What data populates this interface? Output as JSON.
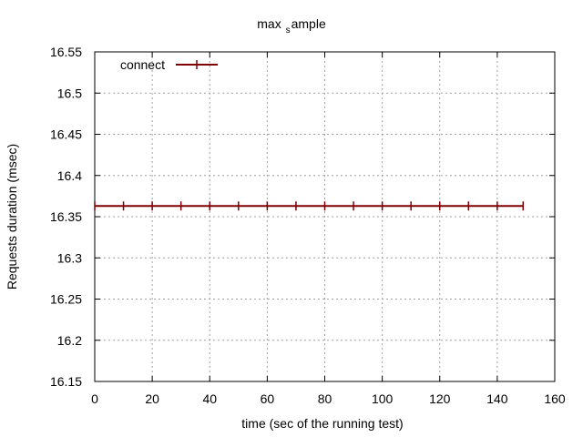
{
  "chart_data": {
    "type": "line",
    "title_main": "max",
    "title_sub": "s",
    "title_rest": "ample",
    "xlabel": "time (sec of the running test)",
    "ylabel": "Requests duration (msec)",
    "xlim": [
      0,
      160
    ],
    "ylim": [
      16.15,
      16.55
    ],
    "xticks": [
      "0",
      "20",
      "40",
      "60",
      "80",
      "100",
      "120",
      "140",
      "160"
    ],
    "yticks": [
      "16.15",
      "16.2",
      "16.25",
      "16.3",
      "16.35",
      "16.4",
      "16.45",
      "16.5",
      "16.55"
    ],
    "grid": true,
    "legend_position": "top-left",
    "series": [
      {
        "name": "connect",
        "color": "#7f0000",
        "x": [
          0,
          10,
          20,
          30,
          40,
          50,
          60,
          70,
          80,
          90,
          100,
          110,
          120,
          130,
          140,
          149
        ],
        "y": [
          16.363,
          16.363,
          16.363,
          16.363,
          16.363,
          16.363,
          16.363,
          16.363,
          16.363,
          16.363,
          16.363,
          16.363,
          16.363,
          16.363,
          16.363,
          16.363
        ]
      }
    ]
  }
}
